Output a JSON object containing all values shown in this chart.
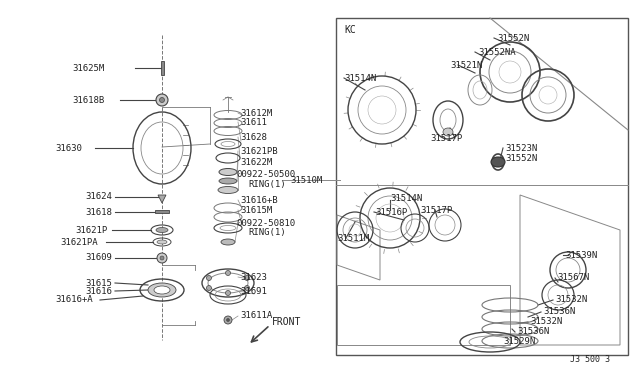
{
  "bg_color": "#ffffff",
  "fig_width": 6.4,
  "fig_height": 3.72,
  "dpi": 100,
  "footer_text": "J3 500 3",
  "kc_label": "KC",
  "front_label": "FRONT"
}
